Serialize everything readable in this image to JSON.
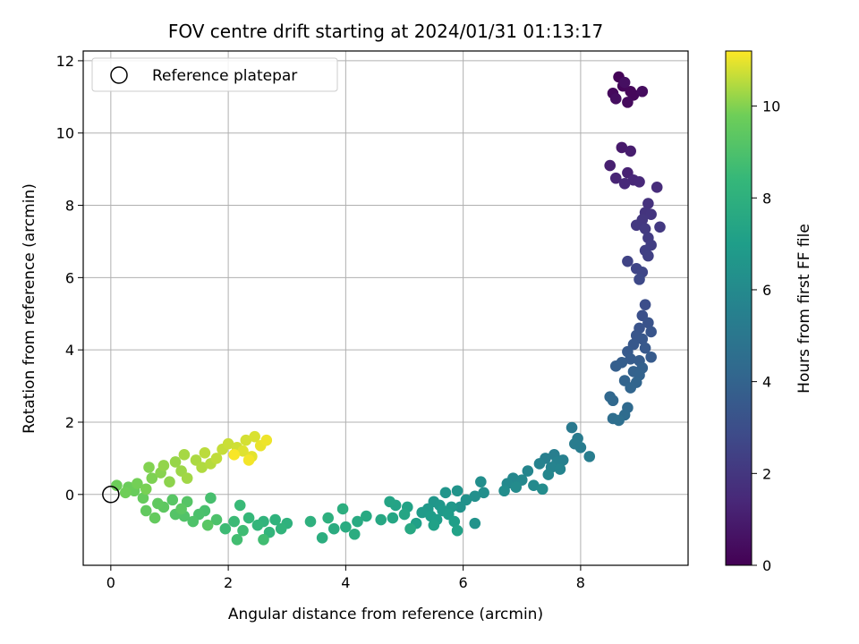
{
  "chart_data": {
    "type": "scatter",
    "title": "FOV centre drift starting at 2024/01/31 01:13:17",
    "xlabel": "Angular distance from reference (arcmin)",
    "ylabel": "Rotation from reference (arcmin)",
    "xlim": [
      -0.47,
      9.83
    ],
    "ylim": [
      -1.96,
      12.27
    ],
    "xticks": [
      0,
      2,
      4,
      6,
      8
    ],
    "xtick_labels": [
      "0",
      "2",
      "4",
      "6",
      "8"
    ],
    "yticks": [
      0,
      2,
      4,
      6,
      8,
      10,
      12
    ],
    "ytick_labels": [
      "0",
      "2",
      "4",
      "6",
      "8",
      "10",
      "12"
    ],
    "grid": true,
    "legend": {
      "placement": "top-left",
      "label": "Reference platepar"
    },
    "reference_point": {
      "x": 0,
      "y": 0
    },
    "colorbar": {
      "label": "Hours from first FF file",
      "colormap": "viridis",
      "range": [
        0,
        11.2
      ],
      "ticks": [
        0,
        2,
        4,
        6,
        8,
        10
      ],
      "tick_labels": [
        "0",
        "2",
        "4",
        "6",
        "8",
        "10"
      ]
    },
    "series": [
      {
        "points": [
          {
            "x": 8.65,
            "y": 11.55,
            "hours": 0.1
          },
          {
            "x": 8.72,
            "y": 11.3,
            "hours": 0.15
          },
          {
            "x": 8.85,
            "y": 11.15,
            "hours": 0.2
          },
          {
            "x": 8.9,
            "y": 11.05,
            "hours": 0.25
          },
          {
            "x": 8.55,
            "y": 11.1,
            "hours": 0.3
          },
          {
            "x": 8.8,
            "y": 10.85,
            "hours": 0.35
          },
          {
            "x": 9.05,
            "y": 11.15,
            "hours": 0.4
          },
          {
            "x": 8.6,
            "y": 10.95,
            "hours": 0.45
          },
          {
            "x": 8.75,
            "y": 11.4,
            "hours": 0.5
          },
          {
            "x": 8.7,
            "y": 9.6,
            "hours": 0.9
          },
          {
            "x": 8.85,
            "y": 9.5,
            "hours": 1.0
          },
          {
            "x": 8.5,
            "y": 9.1,
            "hours": 1.1
          },
          {
            "x": 8.8,
            "y": 8.9,
            "hours": 1.2
          },
          {
            "x": 8.6,
            "y": 8.75,
            "hours": 1.3
          },
          {
            "x": 8.9,
            "y": 8.7,
            "hours": 1.4
          },
          {
            "x": 9.0,
            "y": 8.65,
            "hours": 1.45
          },
          {
            "x": 8.75,
            "y": 8.6,
            "hours": 1.5
          },
          {
            "x": 9.3,
            "y": 8.5,
            "hours": 1.6
          },
          {
            "x": 9.15,
            "y": 8.05,
            "hours": 1.8
          },
          {
            "x": 9.1,
            "y": 7.8,
            "hours": 1.9
          },
          {
            "x": 9.2,
            "y": 7.75,
            "hours": 1.95
          },
          {
            "x": 9.05,
            "y": 7.6,
            "hours": 2.0
          },
          {
            "x": 8.95,
            "y": 7.45,
            "hours": 2.05
          },
          {
            "x": 9.35,
            "y": 7.4,
            "hours": 2.1
          },
          {
            "x": 9.1,
            "y": 7.35,
            "hours": 2.15
          },
          {
            "x": 9.15,
            "y": 7.1,
            "hours": 2.2
          },
          {
            "x": 9.2,
            "y": 6.9,
            "hours": 2.3
          },
          {
            "x": 9.1,
            "y": 6.75,
            "hours": 2.35
          },
          {
            "x": 9.15,
            "y": 6.6,
            "hours": 2.4
          },
          {
            "x": 8.8,
            "y": 6.45,
            "hours": 2.5
          },
          {
            "x": 8.95,
            "y": 6.25,
            "hours": 2.6
          },
          {
            "x": 9.05,
            "y": 6.15,
            "hours": 2.65
          },
          {
            "x": 9.0,
            "y": 5.95,
            "hours": 2.75
          },
          {
            "x": 9.1,
            "y": 5.25,
            "hours": 3.0
          },
          {
            "x": 9.05,
            "y": 4.95,
            "hours": 3.1
          },
          {
            "x": 9.15,
            "y": 4.75,
            "hours": 3.2
          },
          {
            "x": 9.0,
            "y": 4.6,
            "hours": 3.25
          },
          {
            "x": 9.2,
            "y": 4.5,
            "hours": 3.3
          },
          {
            "x": 8.95,
            "y": 4.4,
            "hours": 3.35
          },
          {
            "x": 9.05,
            "y": 4.3,
            "hours": 3.4
          },
          {
            "x": 8.9,
            "y": 4.15,
            "hours": 3.45
          },
          {
            "x": 9.1,
            "y": 4.05,
            "hours": 3.5
          },
          {
            "x": 8.8,
            "y": 3.95,
            "hours": 3.55
          },
          {
            "x": 9.2,
            "y": 3.8,
            "hours": 3.6
          },
          {
            "x": 8.85,
            "y": 3.75,
            "hours": 3.65
          },
          {
            "x": 9.0,
            "y": 3.7,
            "hours": 3.7
          },
          {
            "x": 8.7,
            "y": 3.65,
            "hours": 3.75
          },
          {
            "x": 8.6,
            "y": 3.55,
            "hours": 3.8
          },
          {
            "x": 9.05,
            "y": 3.5,
            "hours": 3.85
          },
          {
            "x": 8.9,
            "y": 3.4,
            "hours": 3.9
          },
          {
            "x": 9.0,
            "y": 3.3,
            "hours": 3.95
          },
          {
            "x": 8.75,
            "y": 3.15,
            "hours": 4.0
          },
          {
            "x": 8.95,
            "y": 3.1,
            "hours": 4.05
          },
          {
            "x": 8.85,
            "y": 2.95,
            "hours": 4.1
          },
          {
            "x": 8.5,
            "y": 2.7,
            "hours": 4.2
          },
          {
            "x": 8.55,
            "y": 2.6,
            "hours": 4.25
          },
          {
            "x": 8.8,
            "y": 2.4,
            "hours": 4.3
          },
          {
            "x": 8.75,
            "y": 2.2,
            "hours": 4.4
          },
          {
            "x": 8.55,
            "y": 2.1,
            "hours": 4.5
          },
          {
            "x": 8.65,
            "y": 2.05,
            "hours": 4.55
          },
          {
            "x": 7.85,
            "y": 1.85,
            "hours": 5.1
          },
          {
            "x": 7.95,
            "y": 1.55,
            "hours": 5.2
          },
          {
            "x": 7.9,
            "y": 1.4,
            "hours": 5.25
          },
          {
            "x": 8.0,
            "y": 1.3,
            "hours": 5.3
          },
          {
            "x": 8.15,
            "y": 1.05,
            "hours": 5.35
          },
          {
            "x": 7.55,
            "y": 1.1,
            "hours": 5.4
          },
          {
            "x": 7.4,
            "y": 1.0,
            "hours": 5.45
          },
          {
            "x": 7.7,
            "y": 0.95,
            "hours": 5.5
          },
          {
            "x": 7.6,
            "y": 0.9,
            "hours": 5.55
          },
          {
            "x": 7.3,
            "y": 0.85,
            "hours": 5.6
          },
          {
            "x": 7.5,
            "y": 0.75,
            "hours": 5.65
          },
          {
            "x": 7.65,
            "y": 0.7,
            "hours": 5.7
          },
          {
            "x": 7.1,
            "y": 0.65,
            "hours": 5.75
          },
          {
            "x": 7.45,
            "y": 0.55,
            "hours": 5.8
          },
          {
            "x": 6.85,
            "y": 0.45,
            "hours": 5.85
          },
          {
            "x": 7.0,
            "y": 0.4,
            "hours": 5.9
          },
          {
            "x": 6.75,
            "y": 0.3,
            "hours": 5.95
          },
          {
            "x": 7.2,
            "y": 0.25,
            "hours": 6.0
          },
          {
            "x": 6.9,
            "y": 0.2,
            "hours": 6.05
          },
          {
            "x": 7.35,
            "y": 0.15,
            "hours": 6.1
          },
          {
            "x": 6.7,
            "y": 0.1,
            "hours": 6.15
          },
          {
            "x": 6.3,
            "y": 0.35,
            "hours": 6.2
          },
          {
            "x": 6.35,
            "y": 0.05,
            "hours": 6.25
          },
          {
            "x": 6.2,
            "y": -0.05,
            "hours": 6.3
          },
          {
            "x": 6.05,
            "y": -0.15,
            "hours": 6.35
          },
          {
            "x": 5.95,
            "y": -0.35,
            "hours": 6.4
          },
          {
            "x": 6.2,
            "y": -0.8,
            "hours": 6.45
          },
          {
            "x": 5.9,
            "y": 0.1,
            "hours": 6.5
          },
          {
            "x": 5.7,
            "y": 0.05,
            "hours": 6.55
          },
          {
            "x": 5.5,
            "y": -0.2,
            "hours": 6.6
          },
          {
            "x": 5.6,
            "y": -0.3,
            "hours": 6.65
          },
          {
            "x": 5.8,
            "y": -0.35,
            "hours": 6.7
          },
          {
            "x": 5.4,
            "y": -0.4,
            "hours": 6.75
          },
          {
            "x": 5.65,
            "y": -0.45,
            "hours": 6.8
          },
          {
            "x": 5.3,
            "y": -0.5,
            "hours": 6.85
          },
          {
            "x": 5.75,
            "y": -0.55,
            "hours": 6.9
          },
          {
            "x": 5.45,
            "y": -0.6,
            "hours": 6.95
          },
          {
            "x": 5.55,
            "y": -0.7,
            "hours": 7.0
          },
          {
            "x": 5.85,
            "y": -0.75,
            "hours": 7.05
          },
          {
            "x": 5.2,
            "y": -0.8,
            "hours": 7.1
          },
          {
            "x": 5.5,
            "y": -0.85,
            "hours": 7.15
          },
          {
            "x": 5.9,
            "y": -1.0,
            "hours": 7.2
          },
          {
            "x": 5.05,
            "y": -0.35,
            "hours": 7.25
          },
          {
            "x": 4.85,
            "y": -0.3,
            "hours": 7.3
          },
          {
            "x": 4.75,
            "y": -0.2,
            "hours": 7.35
          },
          {
            "x": 5.0,
            "y": -0.55,
            "hours": 7.4
          },
          {
            "x": 4.8,
            "y": -0.65,
            "hours": 7.45
          },
          {
            "x": 4.6,
            "y": -0.7,
            "hours": 7.5
          },
          {
            "x": 5.1,
            "y": -0.95,
            "hours": 7.55
          },
          {
            "x": 4.35,
            "y": -0.6,
            "hours": 7.6
          },
          {
            "x": 4.2,
            "y": -0.75,
            "hours": 7.65
          },
          {
            "x": 4.0,
            "y": -0.9,
            "hours": 7.7
          },
          {
            "x": 3.8,
            "y": -0.95,
            "hours": 7.75
          },
          {
            "x": 4.15,
            "y": -1.1,
            "hours": 7.8
          },
          {
            "x": 3.6,
            "y": -1.2,
            "hours": 7.85
          },
          {
            "x": 3.95,
            "y": -0.4,
            "hours": 7.9
          },
          {
            "x": 3.7,
            "y": -0.65,
            "hours": 7.95
          },
          {
            "x": 3.4,
            "y": -0.75,
            "hours": 8.0
          },
          {
            "x": 3.0,
            "y": -0.8,
            "hours": 8.05
          },
          {
            "x": 2.8,
            "y": -0.7,
            "hours": 8.1
          },
          {
            "x": 2.6,
            "y": -0.75,
            "hours": 8.15
          },
          {
            "x": 2.9,
            "y": -0.95,
            "hours": 8.2
          },
          {
            "x": 2.7,
            "y": -1.05,
            "hours": 8.25
          },
          {
            "x": 2.5,
            "y": -0.85,
            "hours": 8.3
          },
          {
            "x": 2.35,
            "y": -0.65,
            "hours": 8.4
          },
          {
            "x": 2.2,
            "y": -0.3,
            "hours": 8.5
          },
          {
            "x": 2.1,
            "y": -0.75,
            "hours": 8.55
          },
          {
            "x": 1.95,
            "y": -0.95,
            "hours": 8.6
          },
          {
            "x": 2.25,
            "y": -1.0,
            "hours": 8.65
          },
          {
            "x": 2.6,
            "y": -1.25,
            "hours": 8.7
          },
          {
            "x": 2.15,
            "y": -1.25,
            "hours": 8.75
          },
          {
            "x": 1.7,
            "y": -0.1,
            "hours": 8.85
          },
          {
            "x": 1.6,
            "y": -0.45,
            "hours": 8.9
          },
          {
            "x": 1.5,
            "y": -0.55,
            "hours": 8.95
          },
          {
            "x": 1.8,
            "y": -0.7,
            "hours": 9.0
          },
          {
            "x": 1.4,
            "y": -0.75,
            "hours": 9.05
          },
          {
            "x": 1.25,
            "y": -0.6,
            "hours": 9.1
          },
          {
            "x": 1.1,
            "y": -0.55,
            "hours": 9.15
          },
          {
            "x": 1.3,
            "y": -0.2,
            "hours": 9.2
          },
          {
            "x": 1.05,
            "y": -0.15,
            "hours": 9.25
          },
          {
            "x": 1.65,
            "y": -0.85,
            "hours": 9.3
          },
          {
            "x": 1.2,
            "y": -0.4,
            "hours": 9.35
          },
          {
            "x": 0.9,
            "y": -0.35,
            "hours": 9.4
          },
          {
            "x": 0.8,
            "y": -0.25,
            "hours": 9.45
          },
          {
            "x": 0.6,
            "y": -0.45,
            "hours": 9.5
          },
          {
            "x": 0.75,
            "y": -0.65,
            "hours": 9.55
          },
          {
            "x": 0.55,
            "y": -0.1,
            "hours": 9.6
          },
          {
            "x": 0.4,
            "y": 0.1,
            "hours": 9.65
          },
          {
            "x": 0.3,
            "y": 0.2,
            "hours": 9.7
          },
          {
            "x": 0.1,
            "y": 0.25,
            "hours": 9.75
          },
          {
            "x": 0.25,
            "y": 0.05,
            "hours": 9.8
          },
          {
            "x": 0.45,
            "y": 0.3,
            "hours": 9.85
          },
          {
            "x": 0.6,
            "y": 0.15,
            "hours": 9.9
          },
          {
            "x": 0.7,
            "y": 0.45,
            "hours": 9.95
          },
          {
            "x": 0.65,
            "y": 0.75,
            "hours": 10.0
          },
          {
            "x": 0.85,
            "y": 0.6,
            "hours": 10.05
          },
          {
            "x": 1.0,
            "y": 0.35,
            "hours": 10.1
          },
          {
            "x": 0.9,
            "y": 0.8,
            "hours": 10.15
          },
          {
            "x": 1.1,
            "y": 0.9,
            "hours": 10.2
          },
          {
            "x": 1.2,
            "y": 0.65,
            "hours": 10.25
          },
          {
            "x": 1.3,
            "y": 0.45,
            "hours": 10.3
          },
          {
            "x": 1.25,
            "y": 1.1,
            "hours": 10.35
          },
          {
            "x": 1.45,
            "y": 0.95,
            "hours": 10.4
          },
          {
            "x": 1.55,
            "y": 0.75,
            "hours": 10.45
          },
          {
            "x": 1.7,
            "y": 0.85,
            "hours": 10.5
          },
          {
            "x": 1.6,
            "y": 1.15,
            "hours": 10.55
          },
          {
            "x": 1.8,
            "y": 1.0,
            "hours": 10.6
          },
          {
            "x": 1.9,
            "y": 1.25,
            "hours": 10.65
          },
          {
            "x": 2.0,
            "y": 1.4,
            "hours": 10.7
          },
          {
            "x": 2.15,
            "y": 1.3,
            "hours": 10.75
          },
          {
            "x": 2.3,
            "y": 1.5,
            "hours": 10.8
          },
          {
            "x": 2.45,
            "y": 1.6,
            "hours": 10.85
          },
          {
            "x": 2.25,
            "y": 1.2,
            "hours": 10.9
          },
          {
            "x": 2.4,
            "y": 1.05,
            "hours": 10.95
          },
          {
            "x": 2.55,
            "y": 1.35,
            "hours": 11.0
          },
          {
            "x": 2.65,
            "y": 1.5,
            "hours": 11.05
          },
          {
            "x": 2.35,
            "y": 0.95,
            "hours": 11.1
          },
          {
            "x": 2.1,
            "y": 1.1,
            "hours": 11.15
          }
        ]
      }
    ]
  }
}
